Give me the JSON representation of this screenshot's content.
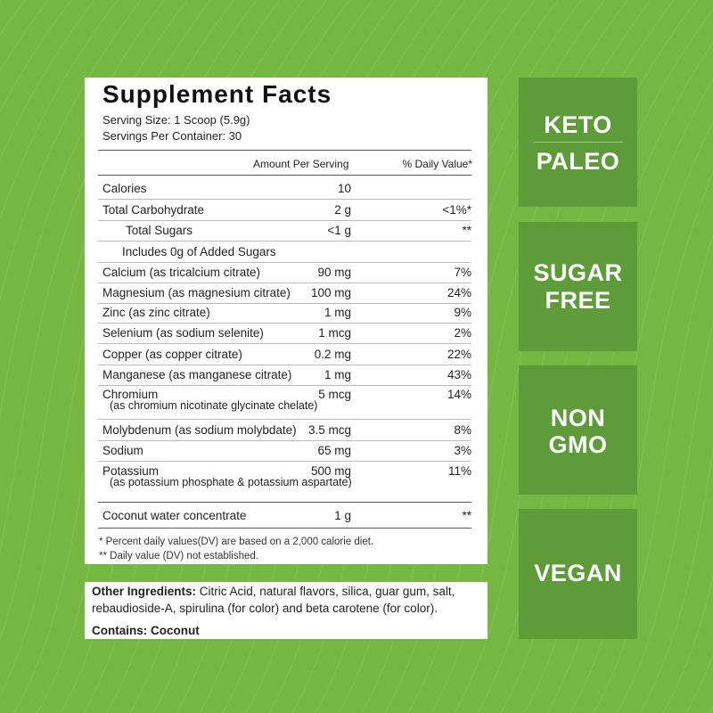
{
  "colors": {
    "background": "#74b842",
    "badge": "#5e9c3a",
    "panel": "#ffffff"
  },
  "facts": {
    "title": "Supplement Facts",
    "serving_size": "Serving Size: 1 Scoop (5.9g)",
    "servings_per_container": "Servings Per Container: 30",
    "header_amount": "Amount Per Serving",
    "header_dv": "% Daily Value*",
    "rows": [
      {
        "name": "Calories",
        "amount": "10",
        "dv": ""
      },
      {
        "name": "Total Carbohydrate",
        "amount": "2 g",
        "dv": "<1%*"
      },
      {
        "name": "Total Sugars",
        "amount": "<1 g",
        "dv": "**"
      },
      {
        "name": "Includes 0g of Added Sugars",
        "amount": "",
        "dv": ""
      },
      {
        "name": "Calcium (as tricalcium citrate)",
        "amount": "90 mg",
        "dv": "7%"
      },
      {
        "name": "Magnesium (as magnesium citrate)",
        "amount": "100 mg",
        "dv": "24%"
      },
      {
        "name": "Zinc (as zinc citrate)",
        "amount": "1 mg",
        "dv": "9%"
      },
      {
        "name": "Selenium (as sodium selenite)",
        "amount": "1 mcg",
        "dv": "2%"
      },
      {
        "name": "Copper (as copper citrate)",
        "amount": "0.2 mg",
        "dv": "22%"
      },
      {
        "name": "Manganese (as manganese citrate)",
        "amount": "1 mg",
        "dv": "43%"
      },
      {
        "name": "Chromium",
        "sub": "(as chromium nicotinate glycinate chelate)",
        "amount": "5 mcg",
        "dv": "14%"
      },
      {
        "name": "Molybdenum (as sodium molybdate)",
        "amount": "3.5 mcg",
        "dv": "8%"
      },
      {
        "name": "Sodium",
        "amount": "65 mg",
        "dv": "3%"
      },
      {
        "name": "Potassium",
        "sub": "(as potassium phosphate & potassium aspartate)",
        "amount": "500 mg",
        "dv": "11%"
      },
      {
        "name": "Coconut water concentrate",
        "amount": "1 g",
        "dv": "**"
      }
    ],
    "footnote_1": "* Percent daily values(DV) are based on a 2,000 calorie diet.",
    "footnote_2": "** Daily value (DV) not established."
  },
  "other": {
    "ingredients_label": "Other Ingredients:",
    "ingredients_line1": " Citric Acid, natural flavors, silica, guar gum, salt,",
    "ingredients_line2": "rebaudioside-A, spirulina (for color) and beta carotene (for color).",
    "contains": "Contains: Coconut"
  },
  "badges": [
    {
      "lines": [
        "KETO",
        "PALEO"
      ]
    },
    {
      "lines": [
        "SUGAR",
        "FREE"
      ]
    },
    {
      "lines": [
        "NON",
        "GMO"
      ]
    },
    {
      "lines": [
        "VEGAN"
      ]
    }
  ]
}
